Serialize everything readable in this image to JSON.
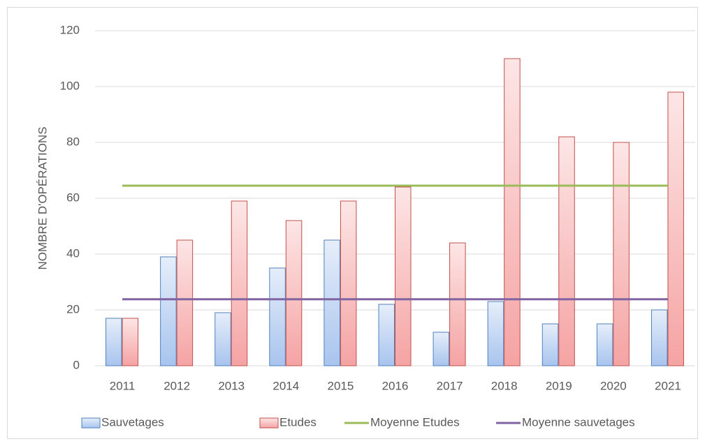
{
  "chart_data": {
    "type": "bar",
    "y_label": "NOMBRE D'OPÉRATIONS",
    "categories": [
      "2011",
      "2012",
      "2013",
      "2014",
      "2015",
      "2016",
      "2017",
      "2018",
      "2019",
      "2020",
      "2021"
    ],
    "series": [
      {
        "name": "Sauvetages",
        "type": "bar",
        "color": "#4f81bd",
        "values": [
          17,
          39,
          19,
          35,
          45,
          22,
          12,
          23,
          15,
          15,
          20
        ]
      },
      {
        "name": "Etudes",
        "type": "bar",
        "color": "#c0504d",
        "values": [
          17,
          45,
          59,
          52,
          59,
          64,
          44,
          110,
          82,
          80,
          98
        ]
      },
      {
        "name": "Moyenne Etudes",
        "type": "line",
        "color": "#9bbb59",
        "values": [
          64.5,
          64.5,
          64.5,
          64.5,
          64.5,
          64.5,
          64.5,
          64.5,
          64.5,
          64.5,
          64.5
        ]
      },
      {
        "name": "Moyenne sauvetages",
        "type": "line",
        "color": "#8064a2",
        "values": [
          23.8,
          23.8,
          23.8,
          23.8,
          23.8,
          23.8,
          23.8,
          23.8,
          23.8,
          23.8,
          23.8
        ]
      }
    ],
    "ylim": [
      0,
      120
    ],
    "yticks": [
      0,
      20,
      40,
      60,
      80,
      100,
      120
    ],
    "grid": true,
    "legend": "bottom"
  }
}
